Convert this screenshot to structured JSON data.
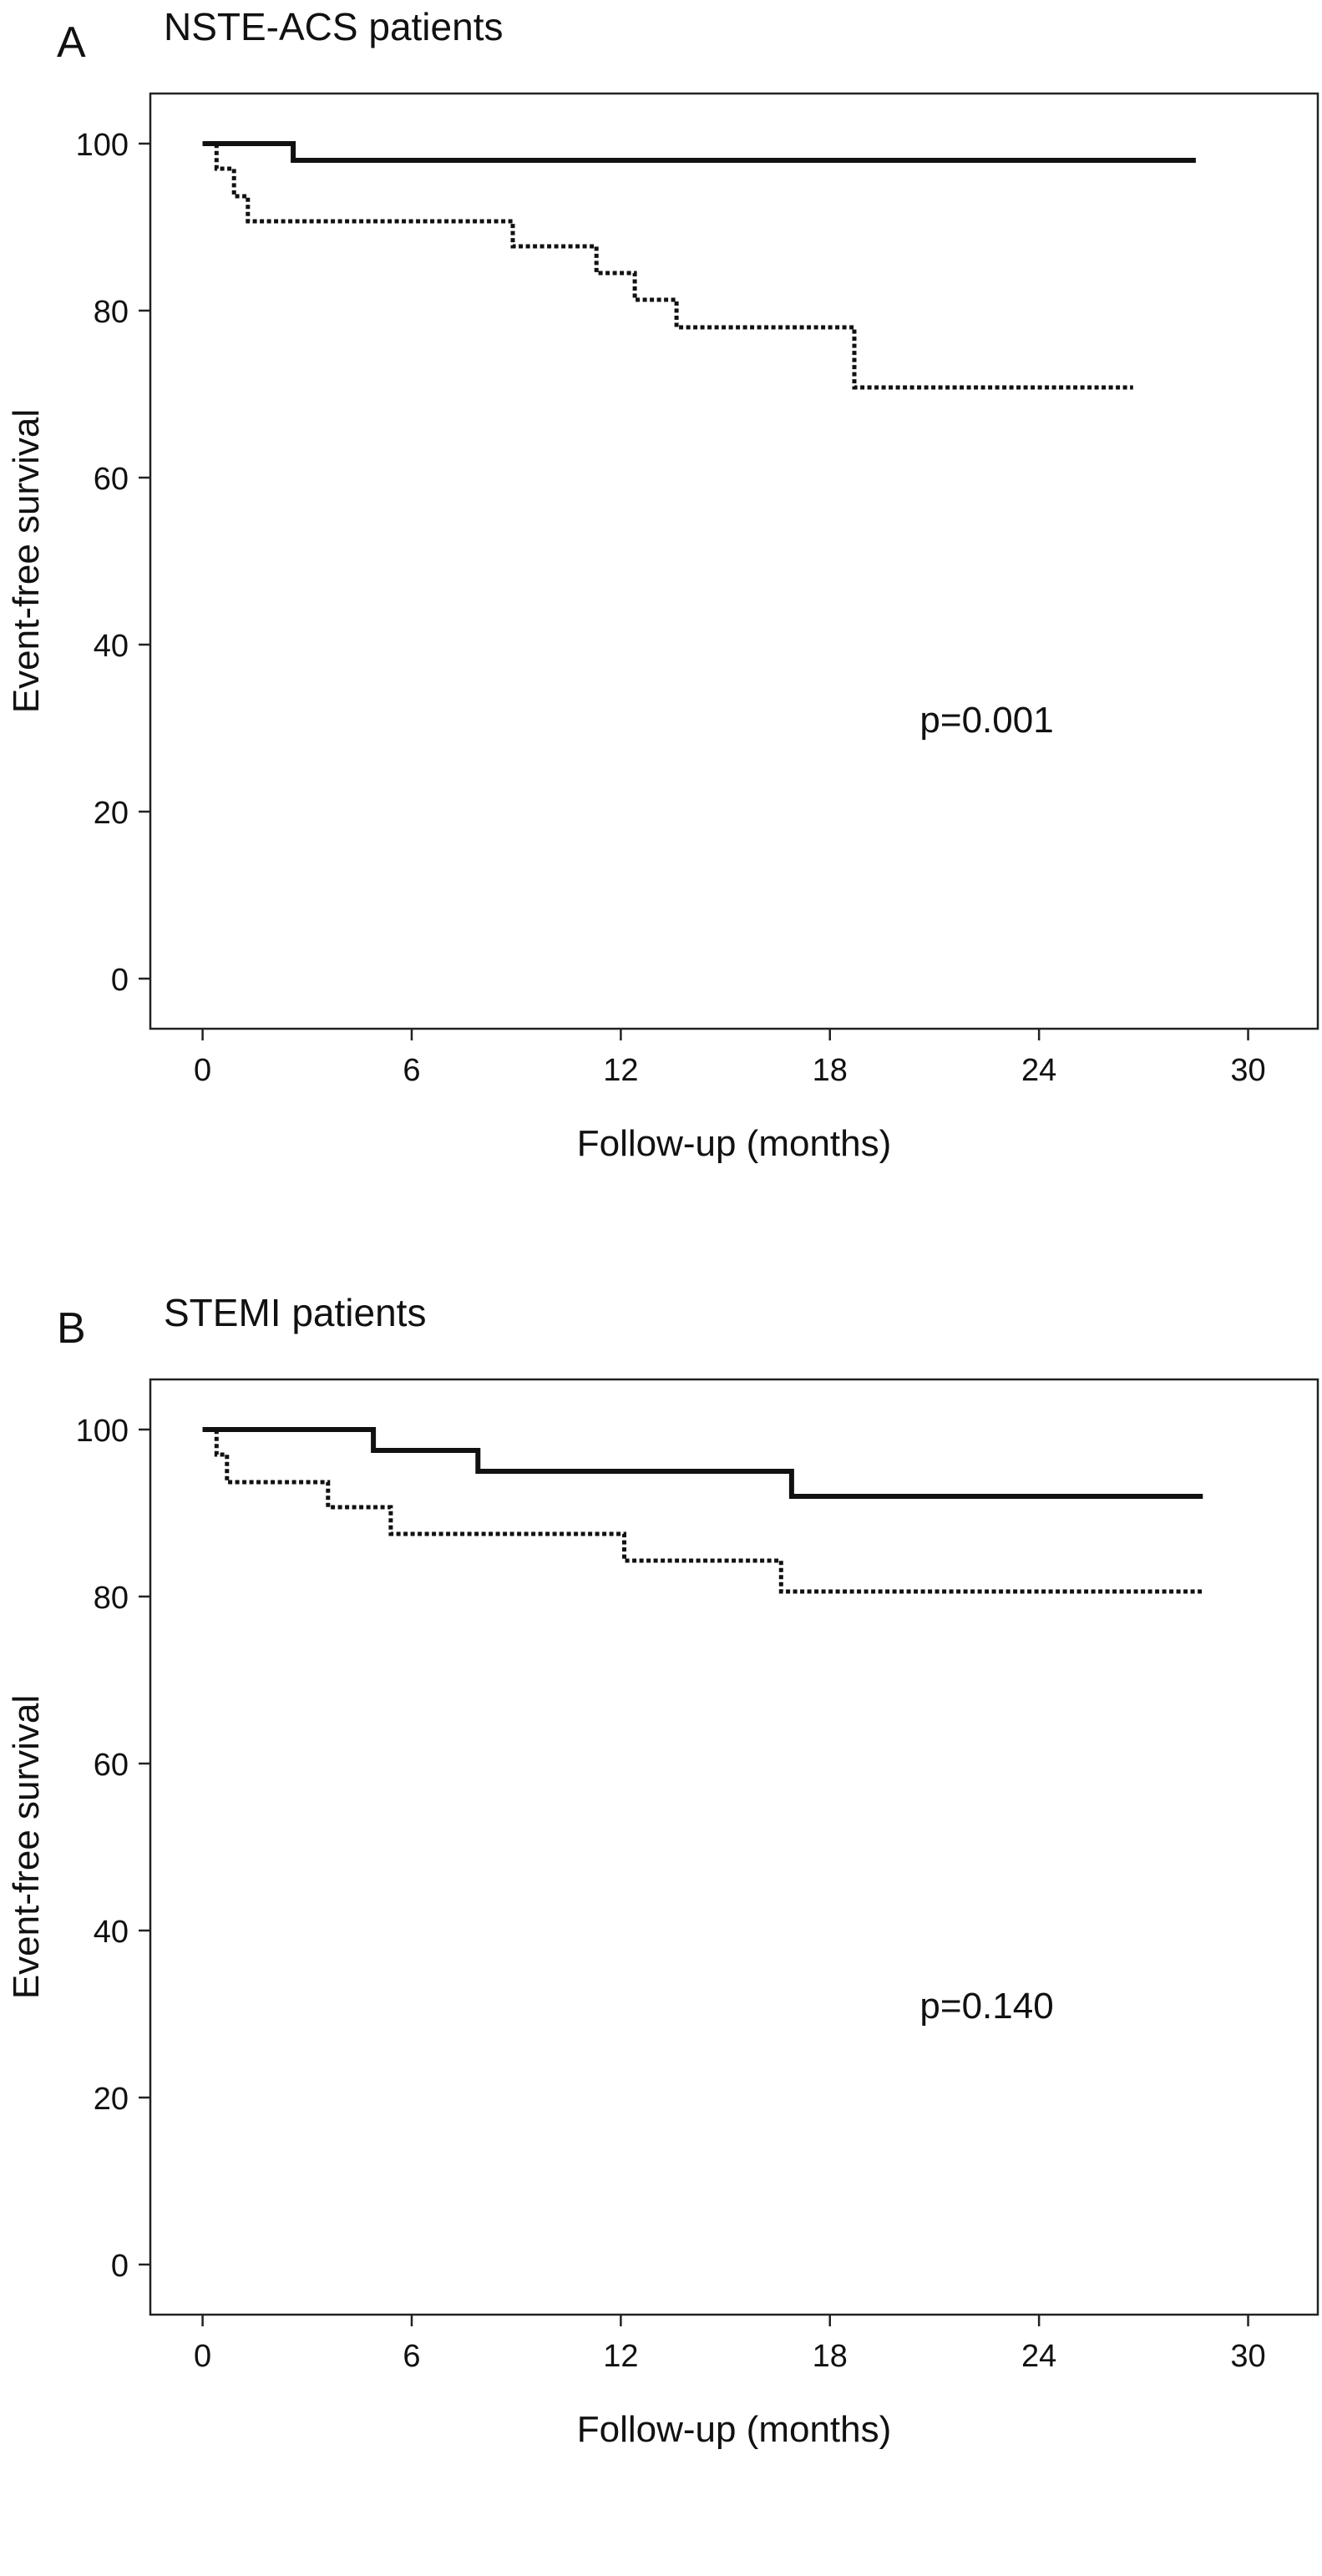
{
  "chart_data": [
    {
      "type": "line",
      "panel_label": "A",
      "title": "NSTE-ACS patients",
      "xlabel": "Follow-up (months)",
      "ylabel": "Event-free survival",
      "xlim": [
        -1.5,
        32
      ],
      "ylim": [
        -6,
        106
      ],
      "xticks": [
        0,
        6,
        12,
        18,
        24,
        30
      ],
      "yticks": [
        0,
        20,
        40,
        60,
        80,
        100
      ],
      "xtick_labels": [
        "0",
        "6",
        "12",
        "18",
        "24",
        "30"
      ],
      "ytick_labels": [
        "0",
        "20",
        "40",
        "60",
        "80",
        "100"
      ],
      "annotation": "p=0.001",
      "annotation_position": [
        22.5,
        29.5
      ],
      "grid": false,
      "series": [
        {
          "style": "solid",
          "x": [
            0,
            2.6,
            2.6,
            28.5
          ],
          "y": [
            100,
            100,
            98,
            98
          ]
        },
        {
          "style": "dotted",
          "x": [
            0,
            0.4,
            0.4,
            0.9,
            0.9,
            1.3,
            1.3,
            8.9,
            8.9,
            11.3,
            11.3,
            12.4,
            12.4,
            13.6,
            13.6,
            18.7,
            18.7,
            26.7
          ],
          "y": [
            100,
            100,
            97,
            97,
            93.7,
            93.7,
            90.7,
            90.7,
            87.7,
            87.7,
            84.5,
            84.5,
            81.3,
            81.3,
            78,
            78,
            70.8,
            70.8
          ]
        }
      ]
    },
    {
      "type": "line",
      "panel_label": "B",
      "title": "STEMI patients",
      "xlabel": "Follow-up (months)",
      "ylabel": "Event-free survival",
      "xlim": [
        -1.5,
        32
      ],
      "ylim": [
        -6,
        106
      ],
      "xticks": [
        0,
        6,
        12,
        18,
        24,
        30
      ],
      "yticks": [
        0,
        20,
        40,
        60,
        80,
        100
      ],
      "xtick_labels": [
        "0",
        "6",
        "12",
        "18",
        "24",
        "30"
      ],
      "ytick_labels": [
        "0",
        "20",
        "40",
        "60",
        "80",
        "100"
      ],
      "annotation": "p=0.140",
      "annotation_position": [
        22.5,
        29.5
      ],
      "grid": false,
      "series": [
        {
          "style": "solid",
          "x": [
            0,
            4.9,
            4.9,
            7.9,
            7.9,
            16.9,
            16.9,
            28.7
          ],
          "y": [
            100,
            100,
            97.5,
            97.5,
            95,
            95,
            92,
            92
          ]
        },
        {
          "style": "dotted",
          "x": [
            0,
            0.4,
            0.4,
            0.7,
            0.7,
            3.6,
            3.6,
            5.4,
            5.4,
            12.1,
            12.1,
            16.6,
            16.6,
            28.7
          ],
          "y": [
            100,
            100,
            97,
            97,
            93.7,
            93.7,
            90.7,
            90.7,
            87.5,
            87.5,
            84.3,
            84.3,
            80.6,
            80.6
          ]
        }
      ]
    }
  ]
}
